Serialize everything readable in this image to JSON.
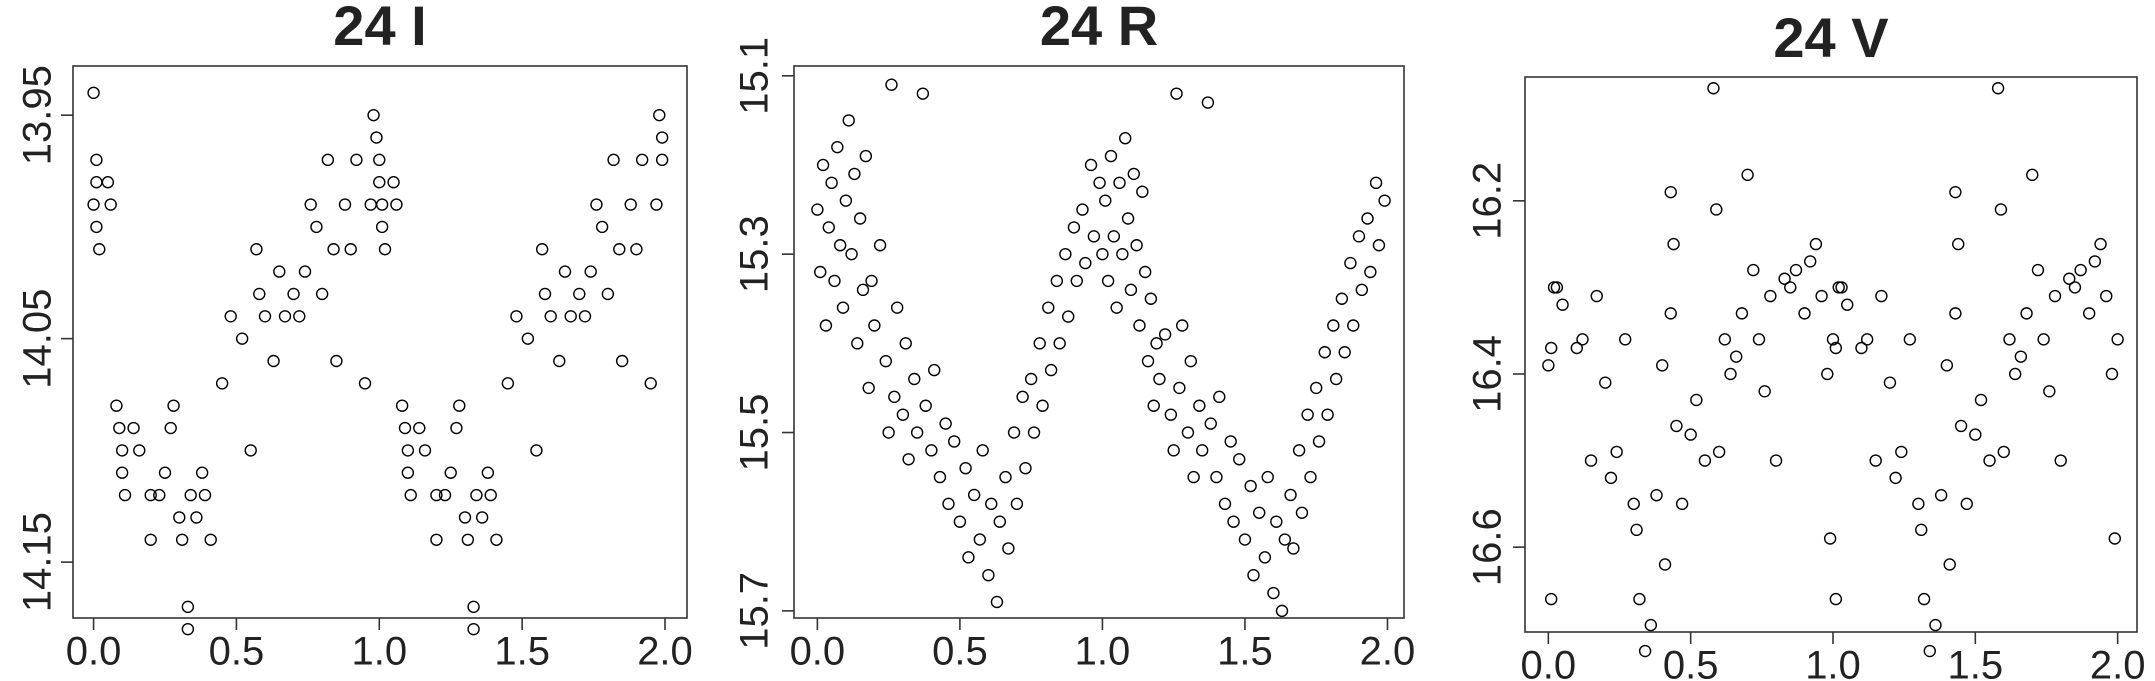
{
  "chart_data": [
    {
      "type": "scatter",
      "title": "24 I",
      "color": "#000000",
      "xlim": [
        -0.072,
        2.077
      ],
      "ylim": [
        14.175,
        13.928
      ],
      "xticks": [
        {
          "value": 0,
          "label": "0.0"
        },
        0.5,
        {
          "value": 1,
          "label": "1.0"
        },
        1.5,
        {
          "value": 2,
          "label": "2.0"
        }
      ],
      "yticks": [
        13.95,
        14.05,
        14.15
      ],
      "x": [
        0.0,
        0.0,
        0.01,
        0.01,
        0.01,
        0.02,
        0.05,
        0.06,
        0.08,
        0.09,
        0.1,
        0.1,
        0.11,
        0.14,
        0.16,
        0.2,
        0.2,
        0.23,
        0.25,
        0.27,
        0.28,
        0.3,
        0.31,
        0.33,
        0.33,
        0.34,
        0.36,
        0.38,
        0.39,
        0.41,
        0.45,
        0.48,
        0.52,
        0.55,
        0.57,
        0.58,
        0.6,
        0.63,
        0.65,
        0.67,
        0.7,
        0.72,
        0.74,
        0.76,
        0.78,
        0.8,
        0.82,
        0.84,
        0.85,
        0.88,
        0.9,
        0.92,
        0.95,
        0.97,
        0.98,
        0.99,
        1.0,
        1.0,
        1.01,
        1.01,
        1.02,
        1.05,
        1.06,
        1.08,
        1.09,
        1.1,
        1.1,
        1.11,
        1.14,
        1.16,
        1.2,
        1.2,
        1.23,
        1.25,
        1.27,
        1.28,
        1.3,
        1.31,
        1.33,
        1.33,
        1.34,
        1.36,
        1.38,
        1.39,
        1.41,
        1.45,
        1.48,
        1.52,
        1.55,
        1.57,
        1.58,
        1.6,
        1.63,
        1.65,
        1.67,
        1.7,
        1.72,
        1.74,
        1.76,
        1.78,
        1.8,
        1.82,
        1.84,
        1.85,
        1.88,
        1.9,
        1.92,
        1.95,
        1.97,
        1.98,
        1.99,
        1.99
      ],
      "values": [
        13.94,
        13.99,
        13.97,
        13.98,
        14.0,
        14.01,
        13.98,
        13.99,
        14.08,
        14.09,
        14.1,
        14.11,
        14.12,
        14.09,
        14.1,
        14.14,
        14.12,
        14.12,
        14.11,
        14.09,
        14.08,
        14.13,
        14.14,
        14.17,
        14.18,
        14.12,
        14.13,
        14.11,
        14.12,
        14.14,
        14.07,
        14.04,
        14.05,
        14.1,
        14.01,
        14.03,
        14.04,
        14.06,
        14.02,
        14.04,
        14.03,
        14.04,
        14.02,
        13.99,
        14.0,
        14.03,
        13.97,
        14.01,
        14.06,
        13.99,
        14.01,
        13.97,
        14.07,
        13.99,
        13.95,
        13.96,
        13.97,
        13.98,
        13.99,
        14.0,
        14.01,
        13.98,
        13.99,
        14.08,
        14.09,
        14.1,
        14.11,
        14.12,
        14.09,
        14.1,
        14.14,
        14.12,
        14.12,
        14.11,
        14.09,
        14.08,
        14.13,
        14.14,
        14.17,
        14.18,
        14.12,
        14.13,
        14.11,
        14.12,
        14.14,
        14.07,
        14.04,
        14.05,
        14.1,
        14.01,
        14.03,
        14.04,
        14.06,
        14.02,
        14.04,
        14.03,
        14.04,
        14.02,
        13.99,
        14.0,
        14.03,
        13.97,
        14.01,
        14.06,
        13.99,
        14.01,
        13.97,
        14.07,
        13.99,
        13.95,
        13.96,
        13.97
      ]
    },
    {
      "type": "scatter",
      "title": "24 R",
      "color": "#000000",
      "xlim": [
        -0.082,
        2.058
      ],
      "ylim": [
        15.708,
        15.089
      ],
      "xticks": [
        {
          "value": 0,
          "label": "0.0"
        },
        0.5,
        {
          "value": 1,
          "label": "1.0"
        },
        1.5,
        {
          "value": 2,
          "label": "2.0"
        }
      ],
      "yticks": [
        15.1,
        15.3,
        15.5,
        15.7
      ],
      "x": [
        0.0,
        0.01,
        0.02,
        0.03,
        0.04,
        0.05,
        0.06,
        0.07,
        0.08,
        0.09,
        0.1,
        0.11,
        0.12,
        0.13,
        0.14,
        0.15,
        0.16,
        0.17,
        0.18,
        0.19,
        0.2,
        0.22,
        0.24,
        0.25,
        0.26,
        0.27,
        0.28,
        0.3,
        0.31,
        0.32,
        0.34,
        0.35,
        0.37,
        0.38,
        0.4,
        0.41,
        0.43,
        0.45,
        0.46,
        0.48,
        0.5,
        0.52,
        0.53,
        0.55,
        0.57,
        0.58,
        0.6,
        0.61,
        0.63,
        0.64,
        0.66,
        0.67,
        0.69,
        0.7,
        0.72,
        0.73,
        0.75,
        0.76,
        0.78,
        0.79,
        0.81,
        0.82,
        0.84,
        0.85,
        0.87,
        0.88,
        0.9,
        0.91,
        0.93,
        0.94,
        0.96,
        0.97,
        0.99,
        1.0,
        1.01,
        1.02,
        1.03,
        1.04,
        1.05,
        1.06,
        1.07,
        1.08,
        1.09,
        1.1,
        1.11,
        1.12,
        1.13,
        1.14,
        1.15,
        1.16,
        1.17,
        1.18,
        1.19,
        1.2,
        1.22,
        1.24,
        1.25,
        1.26,
        1.27,
        1.28,
        1.3,
        1.31,
        1.32,
        1.34,
        1.35,
        1.37,
        1.38,
        1.4,
        1.41,
        1.43,
        1.45,
        1.46,
        1.48,
        1.5,
        1.52,
        1.53,
        1.55,
        1.57,
        1.58,
        1.6,
        1.61,
        1.63,
        1.64,
        1.66,
        1.67,
        1.69,
        1.7,
        1.72,
        1.73,
        1.75,
        1.76,
        1.78,
        1.79,
        1.81,
        1.82,
        1.84,
        1.85,
        1.87,
        1.88,
        1.9,
        1.91,
        1.93,
        1.94,
        1.96,
        1.97,
        1.99
      ],
      "values": [
        15.25,
        15.32,
        15.2,
        15.38,
        15.27,
        15.22,
        15.33,
        15.18,
        15.29,
        15.36,
        15.24,
        15.15,
        15.3,
        15.21,
        15.4,
        15.26,
        15.34,
        15.19,
        15.45,
        15.33,
        15.38,
        15.29,
        15.42,
        15.5,
        15.11,
        15.46,
        15.36,
        15.48,
        15.4,
        15.53,
        15.44,
        15.5,
        15.12,
        15.47,
        15.52,
        15.43,
        15.55,
        15.49,
        15.58,
        15.51,
        15.6,
        15.54,
        15.64,
        15.57,
        15.62,
        15.52,
        15.66,
        15.58,
        15.69,
        15.6,
        15.55,
        15.63,
        15.5,
        15.58,
        15.46,
        15.54,
        15.44,
        15.5,
        15.4,
        15.47,
        15.36,
        15.43,
        15.33,
        15.4,
        15.3,
        15.37,
        15.27,
        15.33,
        15.25,
        15.31,
        15.2,
        15.28,
        15.22,
        15.3,
        15.24,
        15.33,
        15.19,
        15.28,
        15.36,
        15.22,
        15.3,
        15.17,
        15.26,
        15.34,
        15.21,
        15.29,
        15.38,
        15.23,
        15.32,
        15.42,
        15.35,
        15.47,
        15.4,
        15.44,
        15.39,
        15.48,
        15.52,
        15.12,
        15.45,
        15.38,
        15.5,
        15.42,
        15.55,
        15.47,
        15.52,
        15.13,
        15.49,
        15.55,
        15.46,
        15.58,
        15.51,
        15.6,
        15.53,
        15.62,
        15.56,
        15.66,
        15.59,
        15.64,
        15.55,
        15.68,
        15.6,
        15.7,
        15.62,
        15.57,
        15.63,
        15.52,
        15.59,
        15.48,
        15.55,
        15.45,
        15.51,
        15.41,
        15.48,
        15.38,
        15.44,
        15.35,
        15.41,
        15.31,
        15.38,
        15.28,
        15.34,
        15.26,
        15.32,
        15.22,
        15.29,
        15.24
      ]
    },
    {
      "type": "scatter",
      "title": "24 V",
      "color": "#000000",
      "xlim": [
        -0.082,
        2.068
      ],
      "ylim": [
        16.698,
        16.057
      ],
      "xticks": [
        {
          "value": 0,
          "label": "0.0"
        },
        0.5,
        {
          "value": 1,
          "label": "1.0"
        },
        1.5,
        {
          "value": 2,
          "label": "2.0"
        }
      ],
      "yticks": [
        16.2,
        16.4,
        16.6
      ],
      "x": [
        0.0,
        0.01,
        0.01,
        0.02,
        0.03,
        0.05,
        0.1,
        0.12,
        0.15,
        0.17,
        0.2,
        0.22,
        0.24,
        0.27,
        0.3,
        0.31,
        0.32,
        0.34,
        0.36,
        0.38,
        0.4,
        0.41,
        0.43,
        0.43,
        0.44,
        0.45,
        0.47,
        0.5,
        0.52,
        0.55,
        0.58,
        0.59,
        0.6,
        0.62,
        0.64,
        0.66,
        0.68,
        0.7,
        0.72,
        0.74,
        0.76,
        0.78,
        0.8,
        0.83,
        0.85,
        0.87,
        0.9,
        0.92,
        0.94,
        0.96,
        0.98,
        0.99,
        1.0,
        1.01,
        1.01,
        1.02,
        1.03,
        1.05,
        1.1,
        1.12,
        1.15,
        1.17,
        1.2,
        1.22,
        1.24,
        1.27,
        1.3,
        1.31,
        1.32,
        1.34,
        1.36,
        1.38,
        1.4,
        1.41,
        1.43,
        1.43,
        1.44,
        1.45,
        1.47,
        1.5,
        1.52,
        1.55,
        1.58,
        1.59,
        1.6,
        1.62,
        1.64,
        1.66,
        1.68,
        1.7,
        1.72,
        1.74,
        1.76,
        1.78,
        1.8,
        1.83,
        1.85,
        1.87,
        1.9,
        1.92,
        1.94,
        1.96,
        1.98,
        1.99,
        2.0
      ],
      "values": [
        16.39,
        16.37,
        16.66,
        16.3,
        16.3,
        16.32,
        16.37,
        16.36,
        16.5,
        16.31,
        16.41,
        16.52,
        16.49,
        16.36,
        16.55,
        16.58,
        16.66,
        16.72,
        16.69,
        16.54,
        16.39,
        16.62,
        16.19,
        16.33,
        16.25,
        16.46,
        16.55,
        16.47,
        16.43,
        16.5,
        16.07,
        16.21,
        16.49,
        16.36,
        16.4,
        16.38,
        16.33,
        16.17,
        16.28,
        16.36,
        16.42,
        16.31,
        16.5,
        16.29,
        16.3,
        16.28,
        16.33,
        16.27,
        16.25,
        16.31,
        16.4,
        16.59,
        16.36,
        16.37,
        16.66,
        16.3,
        16.3,
        16.32,
        16.37,
        16.36,
        16.5,
        16.31,
        16.41,
        16.52,
        16.49,
        16.36,
        16.55,
        16.58,
        16.66,
        16.72,
        16.69,
        16.54,
        16.39,
        16.62,
        16.19,
        16.33,
        16.25,
        16.46,
        16.55,
        16.47,
        16.43,
        16.5,
        16.07,
        16.21,
        16.49,
        16.36,
        16.4,
        16.38,
        16.33,
        16.17,
        16.28,
        16.36,
        16.42,
        16.31,
        16.5,
        16.29,
        16.3,
        16.28,
        16.33,
        16.27,
        16.25,
        16.31,
        16.4,
        16.59,
        16.36
      ]
    }
  ]
}
